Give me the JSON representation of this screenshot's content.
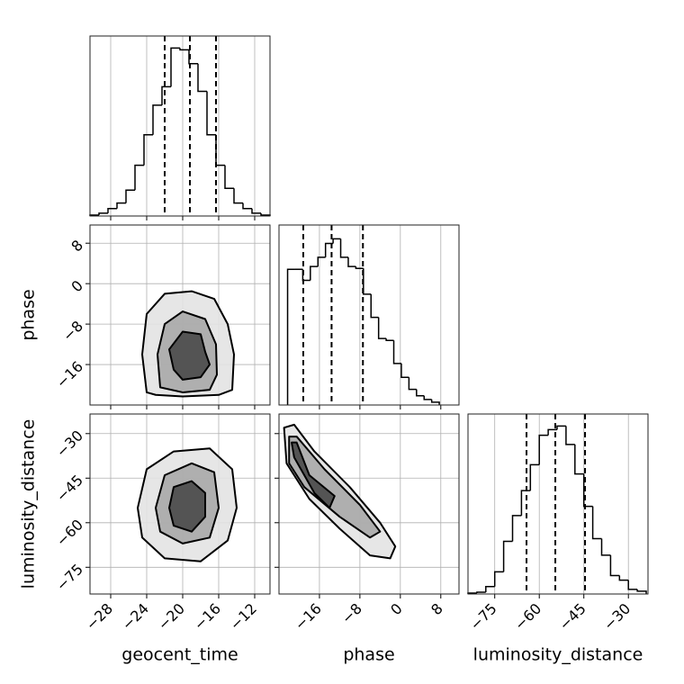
{
  "chart_data": {
    "type": "corner",
    "parameters": [
      {
        "label": "geocent_time",
        "lim": [
          -30.3,
          -10.3
        ],
        "ticks": [
          {
            "value": -28,
            "label": "−28"
          },
          {
            "value": -24,
            "label": "−24"
          },
          {
            "value": -20,
            "label": "−20"
          },
          {
            "value": -16,
            "label": "−16"
          },
          {
            "value": -12,
            "label": "−12"
          }
        ]
      },
      {
        "label": "phase",
        "lim": [
          -24,
          11.6
        ],
        "ticks": [
          {
            "value": -16,
            "label": "−16"
          },
          {
            "value": -8,
            "label": "−8"
          },
          0,
          8
        ]
      },
      {
        "label": "luminosity_distance",
        "lim": [
          -84,
          -23.4
        ],
        "ticks": [
          {
            "value": -75,
            "label": "−75"
          },
          {
            "value": -60,
            "label": "−60"
          },
          {
            "value": -45,
            "label": "−45"
          },
          {
            "value": -30,
            "label": "−30"
          }
        ]
      }
    ],
    "panels": [
      {
        "type": "histogram",
        "param": 0,
        "ylim": [
          0,
          195
        ],
        "bins": [
          -30.3,
          -29.3,
          -28.3,
          -27.3,
          -26.3,
          -25.3,
          -24.3,
          -23.3,
          -22.3,
          -21.3,
          -20.3,
          -19.3,
          -18.3,
          -17.3,
          -16.3,
          -15.3,
          -14.3,
          -13.3,
          -12.3,
          -11.3,
          -10.3
        ],
        "counts": [
          1,
          3,
          8,
          14,
          28,
          55,
          88,
          120,
          140,
          182,
          180,
          165,
          135,
          88,
          55,
          30,
          14,
          8,
          3,
          1
        ],
        "quantiles": [
          -22,
          -19.2,
          -16.3
        ]
      },
      {
        "type": "histogram",
        "param": 1,
        "ylim": [
          0,
          195
        ],
        "bins": [
          -22.3,
          -20.8,
          -19.3,
          -17.8,
          -16.3,
          -14.8,
          -13.3,
          -11.8,
          -10.3,
          -8.8,
          -7.3,
          -5.8,
          -4.3,
          -2.8,
          -1.3,
          0.2,
          1.7,
          3.2,
          4.7,
          6.2,
          7.7
        ],
        "counts": [
          147,
          147,
          135,
          150,
          160,
          175,
          180,
          160,
          150,
          148,
          120,
          95,
          72,
          70,
          45,
          30,
          17,
          10,
          6,
          3
        ],
        "quantiles": [
          -19.2,
          -13.6,
          -7.4
        ]
      },
      {
        "type": "histogram",
        "param": 2,
        "ylim": [
          0,
          195
        ],
        "bins": [
          -84,
          -81,
          -78,
          -75,
          -72,
          -69,
          -66,
          -63,
          -60,
          -57,
          -54,
          -51,
          -48,
          -45,
          -42,
          -39,
          -36,
          -33,
          -30,
          -27,
          -24
        ],
        "counts": [
          1,
          2,
          8,
          24,
          57,
          85,
          112,
          140,
          172,
          178,
          182,
          162,
          130,
          95,
          60,
          42,
          20,
          15,
          5,
          3
        ],
        "quantiles": [
          -64.3,
          -54.6,
          -44.6
        ]
      },
      {
        "type": "contour",
        "x": 0,
        "y": 1,
        "contours": [
          {
            "x": [
              -24,
              -24.5,
              -24,
              -22,
              -19,
              -16.5,
              -15,
              -14.3,
              -14.5,
              -16,
              -20,
              -23
            ],
            "y": [
              -21.5,
              -14,
              -6,
              -2,
              -1.5,
              -3,
              -8,
              -14,
              -21,
              -22,
              -22.3,
              -22
            ]
          },
          {
            "x": [
              -22.5,
              -22.8,
              -22,
              -20,
              -17.5,
              -16.3,
              -16.2,
              -17,
              -20
            ],
            "y": [
              -20.5,
              -14,
              -8,
              -5.5,
              -7,
              -12,
              -18,
              -21,
              -21.5
            ]
          },
          {
            "x": [
              -21,
              -21.5,
              -20,
              -18,
              -17.5,
              -17,
              -18,
              -20
            ],
            "y": [
              -17,
              -13,
              -9.5,
              -10,
              -13.5,
              -16,
              -18.5,
              -19
            ]
          }
        ]
      },
      {
        "type": "contour",
        "x": 0,
        "y": 2,
        "contours": [
          {
            "x": [
              -25,
              -24,
              -21,
              -17,
              -14.5,
              -14,
              -15,
              -18,
              -22,
              -24.5
            ],
            "y": [
              -55,
              -42,
              -36,
              -35,
              -42,
              -55,
              -66,
              -73,
              -72,
              -65
            ]
          },
          {
            "x": [
              -23,
              -22,
              -19,
              -16.5,
              -16,
              -17,
              -20,
              -22.5
            ],
            "y": [
              -55,
              -44,
              -40,
              -43,
              -55,
              -65,
              -67,
              -63
            ]
          },
          {
            "x": [
              -21.5,
              -21,
              -19,
              -17.5,
              -17.5,
              -19,
              -21
            ],
            "y": [
              -55,
              -48,
              -46,
              -50,
              -58,
              -63,
              -61
            ]
          }
        ]
      },
      {
        "type": "contour",
        "x": 1,
        "y": 2,
        "contours": [
          {
            "x": [
              -23,
              -21,
              -17,
              -10,
              -4,
              -1,
              -2,
              -6,
              -12,
              -18,
              -22.5
            ],
            "y": [
              -28,
              -27,
              -36,
              -48,
              -60,
              -68,
              -72,
              -71,
              -62,
              -52,
              -40
            ]
          },
          {
            "x": [
              -22,
              -20.5,
              -15,
              -8,
              -4,
              -6,
              -12,
              -19,
              -22
            ],
            "y": [
              -31,
              -31,
              -42,
              -54,
              -63,
              -65,
              -58,
              -48,
              -40
            ]
          },
          {
            "x": [
              -21.5,
              -21,
              -17,
              -14,
              -13,
              -18,
              -20.5
            ],
            "y": [
              -33,
              -38,
              -50,
              -55,
              -51,
              -44,
              -33
            ]
          }
        ]
      }
    ]
  }
}
